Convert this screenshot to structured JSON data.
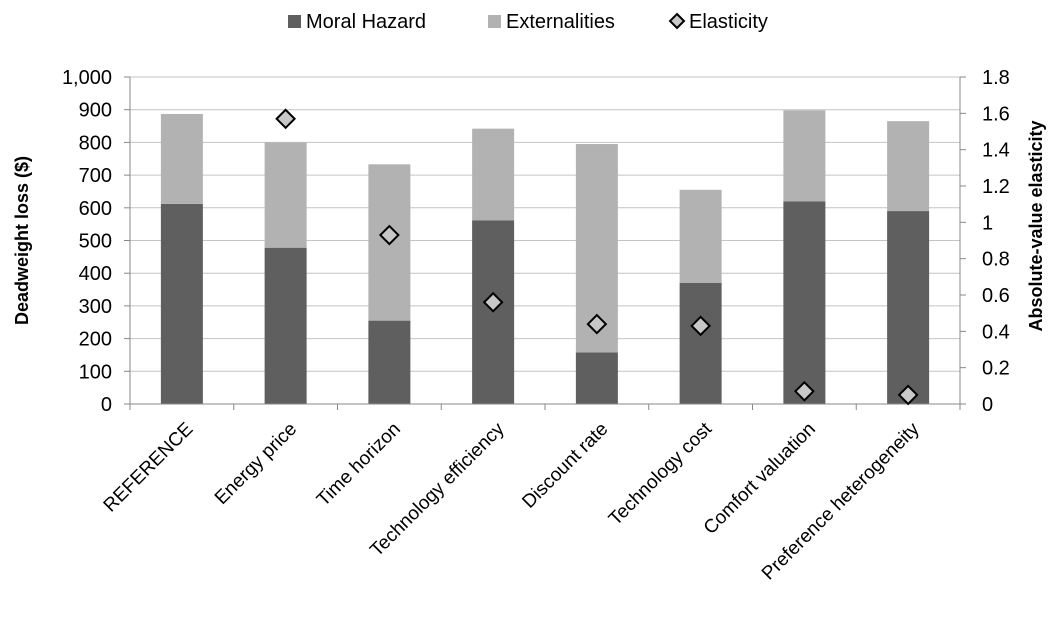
{
  "chart_data": {
    "type": "bar",
    "stacked": true,
    "categories": [
      "REFERENCE",
      "Energy price",
      "Time horizon",
      "Technology efficiency",
      "Discount rate",
      "Technology cost",
      "Comfort valuation",
      "Preference heterogeneity"
    ],
    "series": [
      {
        "name": "Moral Hazard",
        "type": "bar",
        "axis": "left",
        "color": "#5f5f5f",
        "values": [
          612,
          478,
          255,
          562,
          158,
          370,
          620,
          590
        ]
      },
      {
        "name": "Externalities",
        "type": "bar",
        "axis": "left",
        "color": "#b2b2b2",
        "values": [
          275,
          322,
          478,
          280,
          637,
          285,
          278,
          275
        ]
      },
      {
        "name": "Elasticity",
        "type": "scatter",
        "axis": "right",
        "marker": "diamond",
        "color": "#c8c8c8",
        "values": [
          null,
          1.57,
          0.93,
          0.56,
          0.44,
          0.43,
          0.07,
          0.05
        ]
      }
    ],
    "ylabel": "Deadweight loss ($)",
    "y2label": "Absolute-value elasticity",
    "ylim": [
      0,
      1000
    ],
    "y2lim": [
      0,
      1.8
    ],
    "yticks": [
      "0",
      "100",
      "200",
      "300",
      "400",
      "500",
      "600",
      "700",
      "800",
      "900",
      "1,000"
    ],
    "y2ticks": [
      "0",
      "0.2",
      "0.4",
      "0.6",
      "0.8",
      "1",
      "1.2",
      "1.4",
      "1.6",
      "1.8"
    ],
    "grid": true,
    "legend_position": "top"
  }
}
